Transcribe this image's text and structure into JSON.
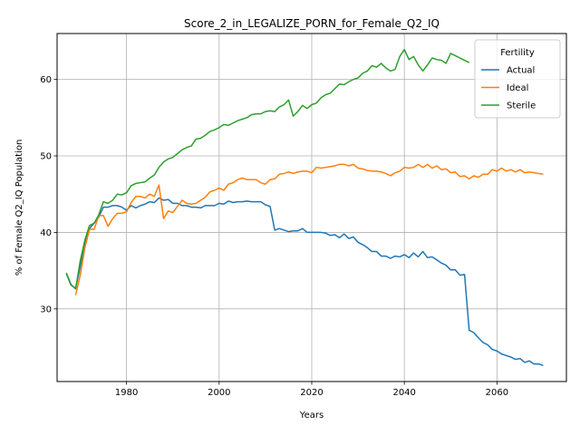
{
  "chart_data": {
    "type": "line",
    "title": "Score_2_in_LEGALIZE_PORN_for_Female_Q2_IQ",
    "xlabel": "Years",
    "ylabel": "% of Female Q2_IQ Population",
    "xlim": [
      1965,
      2075
    ],
    "ylim": [
      20.5,
      66
    ],
    "xticks": [
      1980,
      2000,
      2020,
      2040,
      2060
    ],
    "yticks": [
      30,
      40,
      50,
      60
    ],
    "grid": true,
    "legend": {
      "title": "Fertility",
      "placement": "top-right"
    },
    "colors": {
      "Actual": "#1f77b4",
      "Ideal": "#ff7f0e",
      "Sterile": "#2ca02c"
    },
    "series": [
      {
        "name": "Actual",
        "points": [
          [
            1967,
            34.6
          ],
          [
            1968,
            33.1
          ],
          [
            1969,
            32.7
          ],
          [
            1970,
            35.5
          ],
          [
            1971,
            38.5
          ],
          [
            1972,
            40.5
          ],
          [
            1973,
            41.2
          ],
          [
            1974,
            42.0
          ],
          [
            1975,
            43.3
          ],
          [
            1976,
            43.3
          ],
          [
            1977,
            43.5
          ],
          [
            1978,
            43.5
          ],
          [
            1979,
            43.3
          ],
          [
            1980,
            42.9
          ],
          [
            1981,
            43.5
          ],
          [
            1982,
            43.2
          ],
          [
            1983,
            43.5
          ],
          [
            1984,
            43.7
          ],
          [
            1985,
            44.0
          ],
          [
            1986,
            43.9
          ],
          [
            1987,
            44.5
          ],
          [
            1988,
            44.2
          ],
          [
            1989,
            44.3
          ],
          [
            1990,
            43.8
          ],
          [
            1991,
            43.8
          ],
          [
            1992,
            43.5
          ],
          [
            1993,
            43.5
          ],
          [
            1994,
            43.3
          ],
          [
            1995,
            43.3
          ],
          [
            1996,
            43.2
          ],
          [
            1997,
            43.5
          ],
          [
            1998,
            43.5
          ],
          [
            1999,
            43.5
          ],
          [
            2000,
            43.8
          ],
          [
            2001,
            43.7
          ],
          [
            2002,
            44.1
          ],
          [
            2003,
            43.9
          ],
          [
            2004,
            44.0
          ],
          [
            2005,
            44.0
          ],
          [
            2006,
            44.1
          ],
          [
            2007,
            44.0
          ],
          [
            2008,
            44.0
          ],
          [
            2009,
            44.0
          ],
          [
            2010,
            43.6
          ],
          [
            2011,
            43.4
          ],
          [
            2012,
            40.3
          ],
          [
            2013,
            40.5
          ],
          [
            2014,
            40.3
          ],
          [
            2015,
            40.1
          ],
          [
            2016,
            40.2
          ],
          [
            2017,
            40.2
          ],
          [
            2018,
            40.5
          ],
          [
            2019,
            40.0
          ],
          [
            2020,
            40.0
          ],
          [
            2021,
            40.0
          ],
          [
            2022,
            40.0
          ],
          [
            2023,
            39.9
          ],
          [
            2024,
            39.6
          ],
          [
            2025,
            39.7
          ],
          [
            2026,
            39.3
          ],
          [
            2027,
            39.8
          ],
          [
            2028,
            39.2
          ],
          [
            2029,
            39.4
          ],
          [
            2030,
            38.7
          ],
          [
            2031,
            38.4
          ],
          [
            2032,
            38.0
          ],
          [
            2033,
            37.5
          ],
          [
            2034,
            37.5
          ],
          [
            2035,
            36.9
          ],
          [
            2036,
            36.9
          ],
          [
            2037,
            36.6
          ],
          [
            2038,
            36.9
          ],
          [
            2039,
            36.8
          ],
          [
            2040,
            37.1
          ],
          [
            2041,
            36.7
          ],
          [
            2042,
            37.3
          ],
          [
            2043,
            36.8
          ],
          [
            2044,
            37.5
          ],
          [
            2045,
            36.7
          ],
          [
            2046,
            36.8
          ],
          [
            2047,
            36.4
          ],
          [
            2048,
            36.0
          ],
          [
            2049,
            35.7
          ],
          [
            2050,
            35.1
          ],
          [
            2051,
            35.1
          ],
          [
            2052,
            34.4
          ],
          [
            2053,
            34.5
          ],
          [
            2054,
            27.2
          ],
          [
            2055,
            26.9
          ],
          [
            2056,
            26.2
          ],
          [
            2057,
            25.6
          ],
          [
            2058,
            25.3
          ],
          [
            2059,
            24.7
          ],
          [
            2060,
            24.5
          ],
          [
            2061,
            24.1
          ],
          [
            2062,
            23.9
          ],
          [
            2063,
            23.7
          ],
          [
            2064,
            23.4
          ],
          [
            2065,
            23.5
          ],
          [
            2066,
            23.0
          ],
          [
            2067,
            23.2
          ],
          [
            2068,
            22.8
          ],
          [
            2069,
            22.8
          ],
          [
            2070,
            22.6
          ]
        ]
      },
      {
        "name": "Ideal",
        "points": [
          [
            1969,
            31.8
          ],
          [
            1970,
            34.4
          ],
          [
            1971,
            38.0
          ],
          [
            1972,
            40.4
          ],
          [
            1973,
            40.4
          ],
          [
            1974,
            42.2
          ],
          [
            1975,
            42.2
          ],
          [
            1976,
            40.8
          ],
          [
            1977,
            41.8
          ],
          [
            1978,
            42.5
          ],
          [
            1979,
            42.5
          ],
          [
            1980,
            42.7
          ],
          [
            1981,
            43.9
          ],
          [
            1982,
            44.7
          ],
          [
            1983,
            44.7
          ],
          [
            1984,
            44.5
          ],
          [
            1985,
            45.0
          ],
          [
            1986,
            44.7
          ],
          [
            1987,
            46.2
          ],
          [
            1988,
            41.8
          ],
          [
            1989,
            42.8
          ],
          [
            1990,
            42.6
          ],
          [
            1991,
            43.4
          ],
          [
            1992,
            44.2
          ],
          [
            1993,
            43.8
          ],
          [
            1994,
            43.7
          ],
          [
            1995,
            43.8
          ],
          [
            1996,
            44.2
          ],
          [
            1997,
            44.6
          ],
          [
            1998,
            45.3
          ],
          [
            1999,
            45.5
          ],
          [
            2000,
            45.8
          ],
          [
            2001,
            45.5
          ],
          [
            2002,
            46.3
          ],
          [
            2003,
            46.5
          ],
          [
            2004,
            46.9
          ],
          [
            2005,
            47.1
          ],
          [
            2006,
            46.9
          ],
          [
            2007,
            46.9
          ],
          [
            2008,
            46.9
          ],
          [
            2009,
            46.5
          ],
          [
            2010,
            46.3
          ],
          [
            2011,
            46.9
          ],
          [
            2012,
            47.0
          ],
          [
            2013,
            47.6
          ],
          [
            2014,
            47.7
          ],
          [
            2015,
            47.9
          ],
          [
            2016,
            47.7
          ],
          [
            2017,
            47.9
          ],
          [
            2018,
            48.0
          ],
          [
            2019,
            48.0
          ],
          [
            2020,
            47.8
          ],
          [
            2021,
            48.5
          ],
          [
            2022,
            48.4
          ],
          [
            2023,
            48.5
          ],
          [
            2024,
            48.6
          ],
          [
            2025,
            48.7
          ],
          [
            2026,
            48.9
          ],
          [
            2027,
            48.9
          ],
          [
            2028,
            48.7
          ],
          [
            2029,
            48.9
          ],
          [
            2030,
            48.4
          ],
          [
            2031,
            48.3
          ],
          [
            2032,
            48.1
          ],
          [
            2033,
            48.0
          ],
          [
            2034,
            48.0
          ],
          [
            2035,
            47.9
          ],
          [
            2036,
            47.7
          ],
          [
            2037,
            47.4
          ],
          [
            2038,
            47.8
          ],
          [
            2039,
            48.0
          ],
          [
            2040,
            48.5
          ],
          [
            2041,
            48.4
          ],
          [
            2042,
            48.5
          ],
          [
            2043,
            48.9
          ],
          [
            2044,
            48.5
          ],
          [
            2045,
            48.9
          ],
          [
            2046,
            48.4
          ],
          [
            2047,
            48.7
          ],
          [
            2048,
            48.2
          ],
          [
            2049,
            48.3
          ],
          [
            2050,
            47.8
          ],
          [
            2051,
            47.9
          ],
          [
            2052,
            47.3
          ],
          [
            2053,
            47.4
          ],
          [
            2054,
            47.0
          ],
          [
            2055,
            47.4
          ],
          [
            2056,
            47.2
          ],
          [
            2057,
            47.6
          ],
          [
            2058,
            47.6
          ],
          [
            2059,
            48.2
          ],
          [
            2060,
            48.0
          ],
          [
            2061,
            48.4
          ],
          [
            2062,
            48.0
          ],
          [
            2063,
            48.2
          ],
          [
            2064,
            47.9
          ],
          [
            2065,
            48.2
          ],
          [
            2066,
            47.8
          ],
          [
            2067,
            47.9
          ],
          [
            2068,
            47.8
          ],
          [
            2069,
            47.7
          ],
          [
            2070,
            47.6
          ]
        ]
      },
      {
        "name": "Sterile",
        "points": [
          [
            1967,
            34.7
          ],
          [
            1968,
            33.2
          ],
          [
            1969,
            32.6
          ],
          [
            1970,
            36.3
          ],
          [
            1971,
            39.0
          ],
          [
            1972,
            40.9
          ],
          [
            1973,
            41.2
          ],
          [
            1974,
            42.3
          ],
          [
            1975,
            44.0
          ],
          [
            1976,
            43.8
          ],
          [
            1977,
            44.2
          ],
          [
            1978,
            45.0
          ],
          [
            1979,
            44.9
          ],
          [
            1980,
            45.2
          ],
          [
            1981,
            46.1
          ],
          [
            1982,
            46.4
          ],
          [
            1983,
            46.5
          ],
          [
            1984,
            46.6
          ],
          [
            1985,
            47.1
          ],
          [
            1986,
            47.5
          ],
          [
            1987,
            48.5
          ],
          [
            1988,
            49.2
          ],
          [
            1989,
            49.6
          ],
          [
            1990,
            49.8
          ],
          [
            1991,
            50.3
          ],
          [
            1992,
            50.8
          ],
          [
            1993,
            51.1
          ],
          [
            1994,
            51.3
          ],
          [
            1995,
            52.2
          ],
          [
            1996,
            52.3
          ],
          [
            1997,
            52.7
          ],
          [
            1998,
            53.2
          ],
          [
            1999,
            53.4
          ],
          [
            2000,
            53.7
          ],
          [
            2001,
            54.1
          ],
          [
            2002,
            54.0
          ],
          [
            2003,
            54.3
          ],
          [
            2004,
            54.6
          ],
          [
            2005,
            54.8
          ],
          [
            2006,
            55.0
          ],
          [
            2007,
            55.4
          ],
          [
            2008,
            55.5
          ],
          [
            2009,
            55.5
          ],
          [
            2010,
            55.8
          ],
          [
            2011,
            55.9
          ],
          [
            2012,
            55.8
          ],
          [
            2013,
            56.4
          ],
          [
            2014,
            56.7
          ],
          [
            2015,
            57.3
          ],
          [
            2016,
            55.2
          ],
          [
            2017,
            55.8
          ],
          [
            2018,
            56.6
          ],
          [
            2019,
            56.2
          ],
          [
            2020,
            56.7
          ],
          [
            2021,
            56.9
          ],
          [
            2022,
            57.6
          ],
          [
            2023,
            58.0
          ],
          [
            2024,
            58.2
          ],
          [
            2025,
            58.8
          ],
          [
            2026,
            59.4
          ],
          [
            2027,
            59.3
          ],
          [
            2028,
            59.7
          ],
          [
            2029,
            60.0
          ],
          [
            2030,
            60.2
          ],
          [
            2031,
            60.8
          ],
          [
            2032,
            61.1
          ],
          [
            2033,
            61.8
          ],
          [
            2034,
            61.6
          ],
          [
            2035,
            62.1
          ],
          [
            2036,
            61.5
          ],
          [
            2037,
            61.1
          ],
          [
            2038,
            61.3
          ],
          [
            2039,
            63.0
          ],
          [
            2040,
            63.9
          ],
          [
            2041,
            62.6
          ],
          [
            2042,
            63.0
          ],
          [
            2043,
            61.9
          ],
          [
            2044,
            61.1
          ],
          [
            2045,
            61.9
          ],
          [
            2046,
            62.8
          ],
          [
            2047,
            62.6
          ],
          [
            2048,
            62.5
          ],
          [
            2049,
            62.1
          ],
          [
            2050,
            63.4
          ],
          [
            2051,
            63.1
          ],
          [
            2052,
            62.8
          ],
          [
            2053,
            62.5
          ],
          [
            2054,
            62.2
          ]
        ]
      }
    ]
  }
}
